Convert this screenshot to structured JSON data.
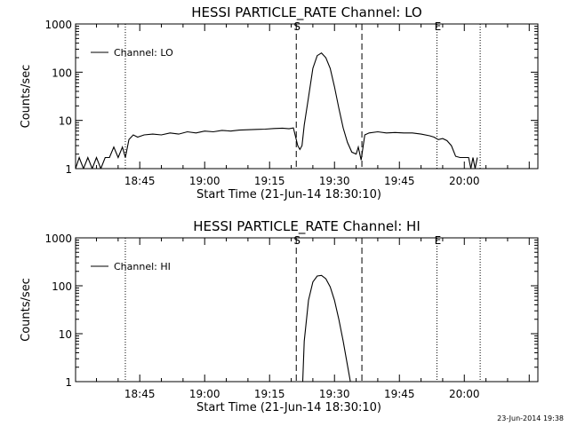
{
  "chart_data": [
    {
      "type": "line",
      "title": "HESSI PARTICLE_RATE Channel: LO",
      "xlabel": "Start Time (21-Jun-14 18:30:10)",
      "ylabel": "Counts/sec",
      "y_scale": "log",
      "ylim": [
        1,
        1000
      ],
      "xlim": [
        "18:30:10",
        "20:17:00"
      ],
      "x_tick_labels": [
        "18:45",
        "19:00",
        "19:15",
        "19:30",
        "19:45",
        "20:00"
      ],
      "y_tick_labels": [
        "1",
        "10",
        "100",
        "1000"
      ],
      "legend": {
        "position": "top-left",
        "entries": [
          "Channel: LO"
        ]
      },
      "markers": [
        {
          "label": "",
          "time": "18:41:40",
          "style": "dotted"
        },
        {
          "label": "S",
          "time": "19:21:10",
          "style": "dashed"
        },
        {
          "label": "",
          "time": "19:36:20",
          "style": "dashed"
        },
        {
          "label": "E",
          "time": "19:53:40",
          "style": "dotted"
        },
        {
          "label": "",
          "time": "20:03:40",
          "style": "dotted"
        }
      ],
      "series": [
        {
          "name": "Channel: LO",
          "x": [
            "18:30:10",
            "18:31:00",
            "18:32:00",
            "18:33:00",
            "18:34:00",
            "18:35:00",
            "18:36:00",
            "18:37:00",
            "18:38:00",
            "18:39:00",
            "18:40:00",
            "18:41:00",
            "18:41:40",
            "18:42:30",
            "18:43:30",
            "18:44:30",
            "18:46:00",
            "18:48:00",
            "18:50:00",
            "18:52:00",
            "18:54:00",
            "18:56:00",
            "18:58:00",
            "19:00:00",
            "19:02:00",
            "19:04:00",
            "19:06:00",
            "19:08:00",
            "19:10:00",
            "19:12:00",
            "19:14:00",
            "19:16:00",
            "19:18:00",
            "19:19:30",
            "19:20:30",
            "19:21:30",
            "19:22:00",
            "19:22:30",
            "19:23:00",
            "19:24:00",
            "19:25:00",
            "19:26:00",
            "19:27:00",
            "19:28:00",
            "19:29:00",
            "19:30:00",
            "19:31:00",
            "19:32:00",
            "19:33:00",
            "19:34:00",
            "19:35:00",
            "19:35:30",
            "19:36:10",
            "19:37:00",
            "19:38:00",
            "19:40:00",
            "19:42:00",
            "19:44:00",
            "19:46:00",
            "19:48:00",
            "19:50:00",
            "19:52:00",
            "19:53:00",
            "19:54:00",
            "19:55:00",
            "19:56:00",
            "19:57:00",
            "19:58:00",
            "19:59:00",
            "20:00:00",
            "20:00:30",
            "20:01:00",
            "20:01:30",
            "20:02:00",
            "20:02:30",
            "20:03:00"
          ],
          "y": [
            1,
            1.7,
            1,
            1.7,
            1,
            1.7,
            1,
            1.7,
            1.7,
            2.8,
            1.7,
            2.8,
            1.7,
            4,
            5,
            4.5,
            5,
            5.2,
            5,
            5.5,
            5.2,
            5.8,
            5.5,
            6,
            5.8,
            6.2,
            6,
            6.3,
            6.4,
            6.5,
            6.6,
            6.8,
            6.9,
            6.7,
            7,
            3,
            2.5,
            3,
            8,
            30,
            120,
            220,
            250,
            200,
            120,
            50,
            18,
            7,
            3.5,
            2.2,
            2,
            2.8,
            1.5,
            5,
            5.5,
            5.8,
            5.5,
            5.6,
            5.5,
            5.5,
            5.2,
            4.8,
            4.5,
            4,
            4.2,
            3.8,
            3,
            1.8,
            1.7,
            1.7,
            1.7,
            1.7,
            1,
            1.7,
            1,
            1.7
          ]
        }
      ]
    },
    {
      "type": "line",
      "title": "HESSI PARTICLE_RATE Channel: HI",
      "xlabel": "Start Time (21-Jun-14 18:30:10)",
      "ylabel": "Counts/sec",
      "y_scale": "log",
      "ylim": [
        1,
        1000
      ],
      "xlim": [
        "18:30:10",
        "20:17:00"
      ],
      "x_tick_labels": [
        "18:45",
        "19:00",
        "19:15",
        "19:30",
        "19:45",
        "20:00"
      ],
      "y_tick_labels": [
        "1",
        "10",
        "100",
        "1000"
      ],
      "legend": {
        "position": "top-left",
        "entries": [
          "Channel: HI"
        ]
      },
      "markers": [
        {
          "label": "",
          "time": "18:41:40",
          "style": "dotted"
        },
        {
          "label": "S",
          "time": "19:21:10",
          "style": "dashed"
        },
        {
          "label": "",
          "time": "19:36:20",
          "style": "dashed"
        },
        {
          "label": "E",
          "time": "19:53:40",
          "style": "dotted"
        },
        {
          "label": "",
          "time": "20:03:40",
          "style": "dotted"
        }
      ],
      "series": [
        {
          "name": "Channel: HI",
          "x": [
            "19:22:40",
            "19:23:00",
            "19:24:00",
            "19:25:00",
            "19:26:00",
            "19:27:00",
            "19:28:00",
            "19:29:00",
            "19:30:00",
            "19:31:00",
            "19:32:00",
            "19:33:00",
            "19:33:40"
          ],
          "y": [
            1,
            7,
            50,
            120,
            160,
            165,
            140,
            95,
            50,
            20,
            7,
            2.2,
            1
          ]
        }
      ]
    }
  ],
  "timestamp": "23-Jun-2014 19:38"
}
